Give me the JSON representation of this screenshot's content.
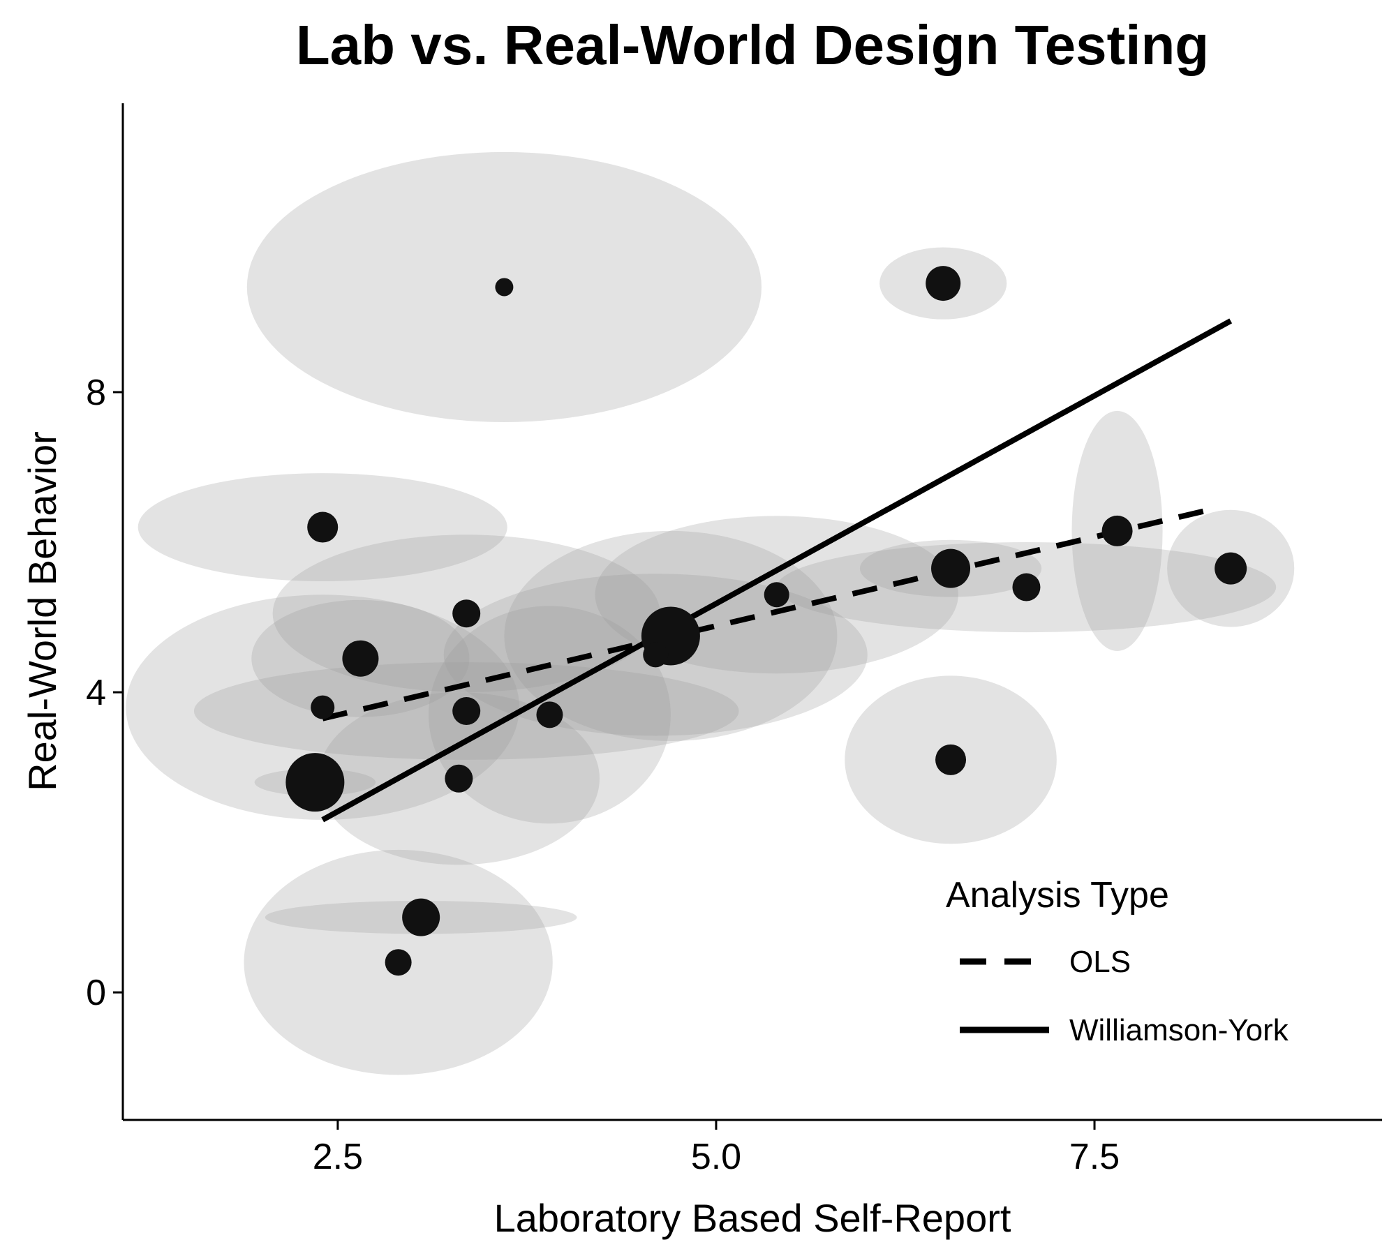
{
  "chart_data": {
    "type": "scatter",
    "title": "Lab vs. Real-World Design Testing",
    "xlabel": "Laboratory Based Self-Report",
    "ylabel": "Real-World Behavior",
    "xlim": [
      1.08,
      9.4
    ],
    "ylim": [
      -1.7,
      11.85
    ],
    "x_ticks": [
      2.5,
      5.0,
      7.5
    ],
    "x_tick_labels": [
      "2.5",
      "5.0",
      "7.5"
    ],
    "y_ticks": [
      0,
      4,
      8
    ],
    "y_tick_labels": [
      "0",
      "4",
      "8"
    ],
    "grid": false,
    "point_color": "#111111",
    "ellipse_color": "#999999",
    "points": [
      {
        "x": 3.6,
        "y": 9.4,
        "sx": 1.7,
        "sy": 1.8,
        "r": 13
      },
      {
        "x": 6.5,
        "y": 9.45,
        "sx": 0.42,
        "sy": 0.48,
        "r": 25
      },
      {
        "x": 2.4,
        "y": 6.2,
        "sx": 1.22,
        "sy": 0.72,
        "r": 22
      },
      {
        "x": 7.65,
        "y": 6.15,
        "sx": 0.3,
        "sy": 1.6,
        "r": 22
      },
      {
        "x": 8.4,
        "y": 5.65,
        "sx": 0.42,
        "sy": 0.78,
        "r": 23
      },
      {
        "x": 6.55,
        "y": 5.65,
        "sx": 0.6,
        "sy": 0.38,
        "r": 28
      },
      {
        "x": 7.05,
        "y": 5.4,
        "sx": 1.65,
        "sy": 0.6,
        "r": 20
      },
      {
        "x": 5.4,
        "y": 5.3,
        "sx": 1.2,
        "sy": 1.05,
        "r": 18
      },
      {
        "x": 4.7,
        "y": 4.75,
        "sx": 1.1,
        "sy": 1.4,
        "r": 42
      },
      {
        "x": 4.6,
        "y": 4.5,
        "sx": 1.4,
        "sy": 1.08,
        "r": 18
      },
      {
        "x": 3.35,
        "y": 5.05,
        "sx": 1.28,
        "sy": 1.05,
        "r": 20
      },
      {
        "x": 2.65,
        "y": 4.45,
        "sx": 0.72,
        "sy": 0.78,
        "r": 26
      },
      {
        "x": 3.9,
        "y": 3.7,
        "sx": 0.8,
        "sy": 1.45,
        "r": 19
      },
      {
        "x": 3.35,
        "y": 3.75,
        "sx": 1.8,
        "sy": 0.65,
        "r": 20
      },
      {
        "x": 2.4,
        "y": 3.8,
        "sx": 1.3,
        "sy": 1.5,
        "r": 17
      },
      {
        "x": 3.3,
        "y": 2.85,
        "sx": 0.93,
        "sy": 1.15,
        "r": 20
      },
      {
        "x": 2.35,
        "y": 2.8,
        "sx": 0.4,
        "sy": 0.18,
        "r": 42
      },
      {
        "x": 6.55,
        "y": 3.1,
        "sx": 0.7,
        "sy": 1.12,
        "r": 22
      },
      {
        "x": 3.05,
        "y": 1.0,
        "sx": 1.03,
        "sy": 0.22,
        "r": 27
      },
      {
        "x": 2.9,
        "y": 0.4,
        "sx": 1.02,
        "sy": 1.5,
        "r": 19
      }
    ],
    "lines": [
      {
        "name": "OLS",
        "style": "dashed",
        "x": [
          2.4,
          8.3
        ],
        "y": [
          3.65,
          6.45
        ]
      },
      {
        "name": "Williamson-York",
        "style": "solid",
        "x": [
          2.4,
          8.4
        ],
        "y": [
          2.3,
          8.95
        ]
      }
    ],
    "legend": {
      "title": "Analysis Type",
      "position": "bottom-right",
      "entries": [
        "OLS",
        "Williamson-York"
      ]
    }
  }
}
